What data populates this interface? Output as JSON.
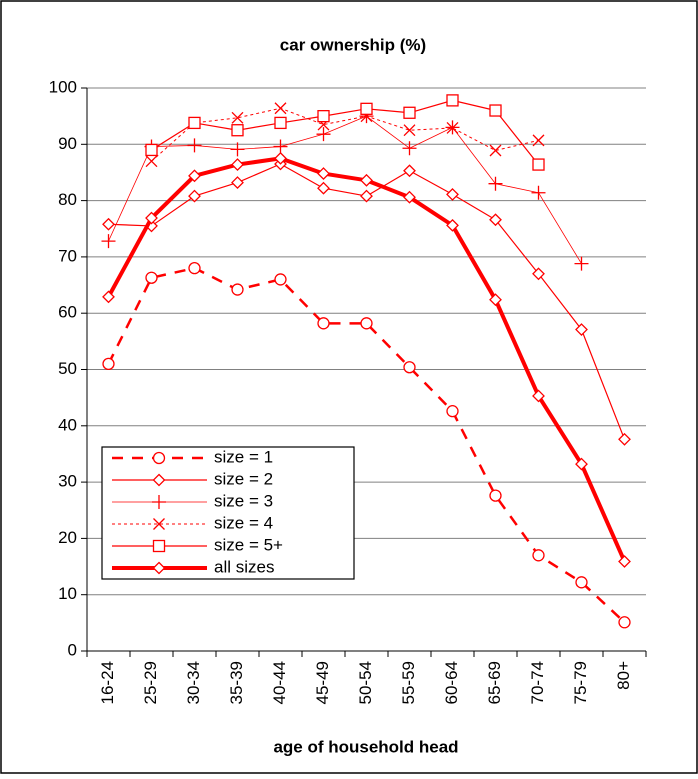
{
  "chart_data": {
    "type": "line",
    "title": "car ownership (%)",
    "x_label": "age of household head",
    "categories": [
      "16-24",
      "25-29",
      "30-34",
      "35-39",
      "40-44",
      "45-49",
      "50-54",
      "55-59",
      "60-64",
      "65-69",
      "70-74",
      "75-79",
      "80+"
    ],
    "ylim": [
      0,
      100
    ],
    "yticks": [
      0,
      10,
      20,
      30,
      40,
      50,
      60,
      70,
      80,
      90,
      100
    ],
    "grid": true,
    "legend": "lower left",
    "series": [
      {
        "name": "size = 1",
        "color": "#ff0000",
        "marker": "circle",
        "line_style": "dashed",
        "line_width": 2.5,
        "values": [
          51,
          66.3,
          68,
          64.2,
          66,
          58.2,
          58.2,
          50.4,
          42.6,
          27.6,
          17,
          12.2,
          5.1
        ]
      },
      {
        "name": "size = 2",
        "color": "#ff0000",
        "marker": "diamond",
        "line_style": "solid",
        "line_width": 1.2,
        "values": [
          75.8,
          75.5,
          80.8,
          83.2,
          86.5,
          82.2,
          80.8,
          85.3,
          81.1,
          76.6,
          67,
          57.1,
          37.6
        ]
      },
      {
        "name": "size = 3",
        "color": "#ff0000",
        "marker": "plus",
        "line_style": "solid",
        "line_width": 0.8,
        "values": [
          72.8,
          89.6,
          89.8,
          89.1,
          89.6,
          91.8,
          95,
          89.3,
          93,
          83,
          81.4,
          68.8,
          null
        ]
      },
      {
        "name": "size = 4",
        "color": "#ff0000",
        "marker": "x",
        "line_style": "dotted",
        "line_width": 1,
        "values": [
          null,
          87,
          93.8,
          94.7,
          96.4,
          93.5,
          95,
          92.5,
          92.9,
          88.9,
          90.7,
          null,
          null
        ]
      },
      {
        "name": "size = 5+",
        "color": "#ff0000",
        "marker": "square",
        "line_style": "solid",
        "line_width": 1.2,
        "values": [
          null,
          89,
          93.8,
          92.5,
          93.8,
          95,
          96.3,
          95.6,
          97.8,
          96,
          86.4,
          null,
          null
        ]
      },
      {
        "name": "all sizes",
        "color": "#ff0000",
        "marker": "diamond",
        "line_style": "solid",
        "line_width": 4,
        "values": [
          62.9,
          76.9,
          84.4,
          86.4,
          87.5,
          84.8,
          83.6,
          80.6,
          75.6,
          62.4,
          45.3,
          33.2,
          15.9
        ]
      }
    ]
  }
}
